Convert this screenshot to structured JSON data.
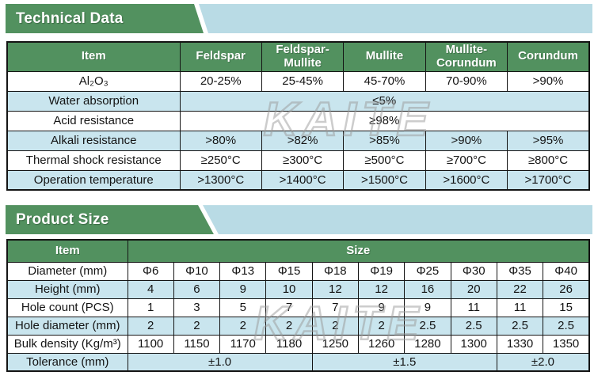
{
  "watermark": "KAITE",
  "colors": {
    "green": "#52915f",
    "row_blue": "#c9e5ee",
    "banner_blue": "#b9dbe5",
    "border": "#141414",
    "watermark_gray": "#9a9a9a"
  },
  "technical": {
    "title": "Technical Data",
    "columns": [
      "Item",
      "Feldspar",
      "Feldspar-Mullite",
      "Mullite",
      "Mullite-Corundum",
      "Corundum"
    ],
    "rows": [
      {
        "label": "Al₂O₃",
        "values": [
          "20-25%",
          "25-45%",
          "45-70%",
          "70-90%",
          ">90%"
        ]
      },
      {
        "label": "Water absorption",
        "merged": "≤5%"
      },
      {
        "label": "Acid resistance",
        "merged": "≥98%"
      },
      {
        "label": "Alkali resistance",
        "values": [
          ">80%",
          ">82%",
          ">85%",
          ">90%",
          ">95%"
        ]
      },
      {
        "label": "Thermal shock resistance",
        "values": [
          "≥250°C",
          "≥300°C",
          "≥500°C",
          "≥700°C",
          "≥800°C"
        ]
      },
      {
        "label": "Operation temperature",
        "values": [
          ">1300°C",
          ">1400°C",
          ">1500°C",
          ">1600°C",
          ">1700°C"
        ]
      }
    ]
  },
  "product": {
    "title": "Product Size",
    "item_header": "Item",
    "size_header": "Size",
    "rows": [
      {
        "label": "Diameter (mm)",
        "values": [
          "Φ6",
          "Φ10",
          "Φ13",
          "Φ15",
          "Φ18",
          "Φ19",
          "Φ25",
          "Φ30",
          "Φ35",
          "Φ40"
        ]
      },
      {
        "label": "Height (mm)",
        "values": [
          "4",
          "6",
          "9",
          "10",
          "12",
          "12",
          "16",
          "20",
          "22",
          "26"
        ]
      },
      {
        "label": "Hole count (PCS)",
        "values": [
          "1",
          "3",
          "5",
          "7",
          "7",
          "9",
          "9",
          "11",
          "11",
          "15"
        ]
      },
      {
        "label": "Hole diameter (mm)",
        "values": [
          "2",
          "2",
          "2",
          "2",
          "2",
          "2",
          "2.5",
          "2.5",
          "2.5",
          "2.5"
        ]
      },
      {
        "label": "Bulk density (Kg/m³)",
        "values": [
          "1100",
          "1150",
          "1170",
          "1180",
          "1250",
          "1260",
          "1280",
          "1300",
          "1330",
          "1350"
        ]
      },
      {
        "label": "Tolerance (mm)",
        "spans": [
          {
            "value": "±1.0",
            "cols": 4
          },
          {
            "value": "±1.5",
            "cols": 4
          },
          {
            "value": "±2.0",
            "cols": 2
          }
        ]
      }
    ]
  }
}
